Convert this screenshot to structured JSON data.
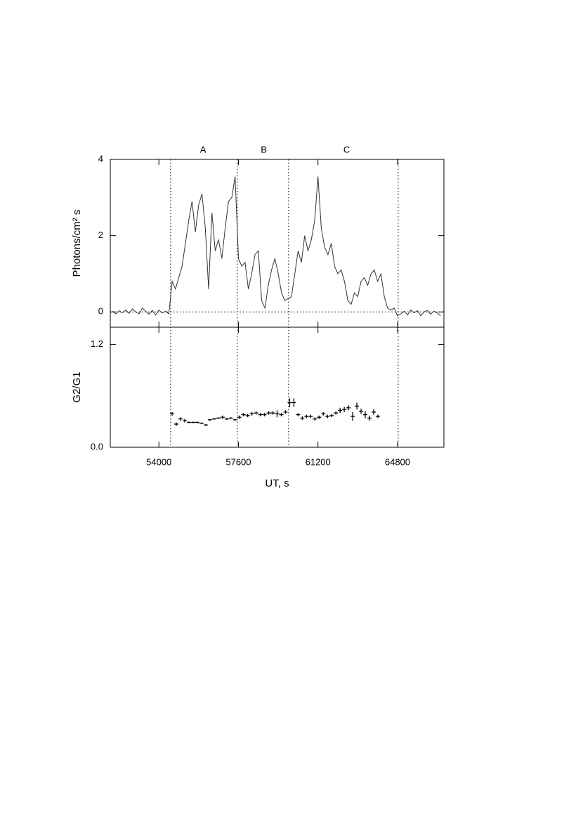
{
  "chart_data": [
    {
      "type": "line",
      "ylabel": "Photons/cm² s",
      "xlim": [
        51800,
        66900
      ],
      "ylim": [
        -0.4,
        4
      ],
      "yticks": [
        0,
        2,
        4
      ],
      "hline": 0,
      "vlines": [
        54530,
        57550,
        59870,
        64830
      ],
      "annotations": [
        {
          "text": "A",
          "x": 56000
        },
        {
          "text": "B",
          "x": 58750
        },
        {
          "text": "C",
          "x": 62500
        }
      ],
      "color": "#333333",
      "x": [
        51900,
        52050,
        52200,
        52350,
        52500,
        52650,
        52800,
        52950,
        53100,
        53250,
        53400,
        53550,
        53700,
        53850,
        54000,
        54150,
        54300,
        54450,
        54600,
        54750,
        54900,
        55050,
        55200,
        55350,
        55500,
        55650,
        55800,
        55950,
        56100,
        56250,
        56400,
        56550,
        56700,
        56850,
        57000,
        57150,
        57300,
        57450,
        57600,
        57750,
        57900,
        58050,
        58200,
        58350,
        58500,
        58650,
        58800,
        58950,
        59100,
        59250,
        59400,
        59550,
        59700,
        59850,
        60000,
        60150,
        60300,
        60450,
        60600,
        60750,
        60900,
        61050,
        61200,
        61350,
        61500,
        61650,
        61800,
        61950,
        62100,
        62250,
        62400,
        62550,
        62700,
        62850,
        63000,
        63150,
        63300,
        63450,
        63600,
        63750,
        63900,
        64050,
        64200,
        64350,
        64500,
        64650,
        64800,
        64950,
        65100,
        65250,
        65400,
        65550,
        65700,
        65850,
        66000,
        66150,
        66300,
        66450,
        66600,
        66750
      ],
      "values": [
        0.02,
        -0.05,
        0.03,
        -0.02,
        0.05,
        -0.04,
        0.08,
        0.0,
        -0.05,
        0.1,
        0.02,
        -0.06,
        0.04,
        -0.08,
        0.05,
        -0.03,
        0.02,
        -0.05,
        0.8,
        0.6,
        0.9,
        1.2,
        1.8,
        2.4,
        2.9,
        2.1,
        2.8,
        3.1,
        2.2,
        0.6,
        2.6,
        1.6,
        1.9,
        1.4,
        2.2,
        2.9,
        3.0,
        3.55,
        1.4,
        1.2,
        1.3,
        0.6,
        1.0,
        1.5,
        1.6,
        0.3,
        0.1,
        0.7,
        1.1,
        1.4,
        1.0,
        0.5,
        0.3,
        0.35,
        0.4,
        1.0,
        1.6,
        1.3,
        2.0,
        1.6,
        1.9,
        2.4,
        3.55,
        2.2,
        1.7,
        1.5,
        1.8,
        1.2,
        1.0,
        1.1,
        0.8,
        0.3,
        0.2,
        0.5,
        0.4,
        0.8,
        0.9,
        0.7,
        1.0,
        1.1,
        0.8,
        1.0,
        0.4,
        0.1,
        0.05,
        0.1,
        -0.1,
        -0.05,
        0.02,
        -0.08,
        0.05,
        -0.02,
        0.03,
        -0.1,
        0.0,
        0.04,
        -0.06,
        0.02,
        -0.03,
        -0.1
      ]
    },
    {
      "type": "errorbar",
      "ylabel": "G2/G1",
      "xlabel": "UT, s",
      "xlim": [
        51800,
        66900
      ],
      "xticks": [
        54000,
        57600,
        61200,
        64800
      ],
      "ylim": [
        0,
        1.4
      ],
      "yticks": [
        {
          "value": 0,
          "label": "0.0"
        },
        {
          "value": 1.2,
          "label": "1.2"
        }
      ],
      "color": "#000000",
      "xerr": 95,
      "x": [
        54600,
        54790,
        54980,
        55170,
        55360,
        55550,
        55740,
        55930,
        56120,
        56310,
        56500,
        56690,
        56880,
        57070,
        57260,
        57450,
        57640,
        57830,
        58020,
        58210,
        58400,
        58590,
        58780,
        58970,
        59160,
        59350,
        59540,
        59730,
        59920,
        60110,
        60300,
        60490,
        60680,
        60870,
        61060,
        61250,
        61440,
        61630,
        61820,
        62010,
        62200,
        62390,
        62580,
        62770,
        62960,
        63150,
        63340,
        63530,
        63720,
        63910
      ],
      "values": [
        0.39,
        0.27,
        0.33,
        0.31,
        0.29,
        0.29,
        0.29,
        0.28,
        0.26,
        0.32,
        0.33,
        0.34,
        0.35,
        0.33,
        0.34,
        0.32,
        0.35,
        0.38,
        0.37,
        0.39,
        0.4,
        0.38,
        0.38,
        0.4,
        0.4,
        0.39,
        0.38,
        0.41,
        0.52,
        0.52,
        0.38,
        0.34,
        0.36,
        0.36,
        0.33,
        0.35,
        0.39,
        0.36,
        0.37,
        0.4,
        0.43,
        0.44,
        0.46,
        0.36,
        0.48,
        0.42,
        0.38,
        0.34,
        0.41,
        0.36
      ],
      "errors": [
        0.02,
        0.02,
        0.02,
        0.02,
        0.01,
        0.01,
        0.01,
        0.01,
        0.01,
        0.01,
        0.01,
        0.01,
        0.02,
        0.01,
        0.01,
        0.01,
        0.02,
        0.02,
        0.02,
        0.02,
        0.02,
        0.02,
        0.02,
        0.02,
        0.02,
        0.04,
        0.02,
        0.02,
        0.05,
        0.05,
        0.02,
        0.02,
        0.02,
        0.02,
        0.02,
        0.02,
        0.02,
        0.02,
        0.02,
        0.02,
        0.03,
        0.03,
        0.03,
        0.05,
        0.04,
        0.03,
        0.04,
        0.03,
        0.03,
        0.02
      ]
    }
  ]
}
